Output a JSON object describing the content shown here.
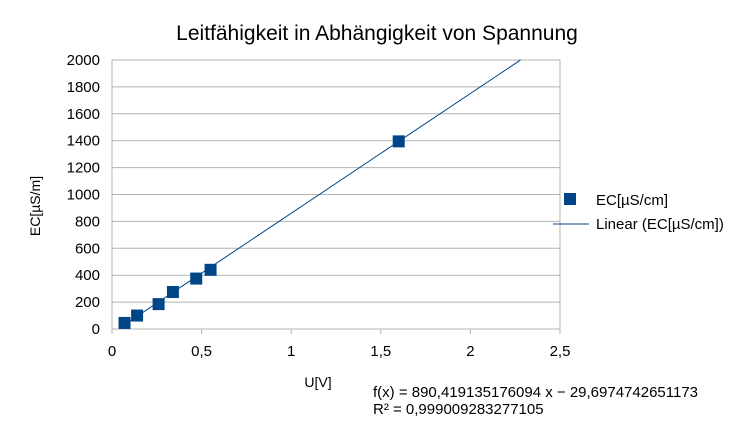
{
  "chart_data": {
    "type": "scatter",
    "title": "Leitfähigkeit in Abhängigkeit von Spannung",
    "xlabel": "U[V]",
    "ylabel": "EC[µS/m]",
    "xlim": [
      0,
      2.5
    ],
    "ylim": [
      0,
      2000
    ],
    "x_ticks": [
      "0",
      "0,5",
      "1",
      "1,5",
      "2",
      "2,5"
    ],
    "y_ticks": [
      "0",
      "200",
      "400",
      "600",
      "800",
      "1000",
      "1200",
      "1400",
      "1600",
      "1800",
      "2000"
    ],
    "grid": "horizontal",
    "legend_position": "right",
    "series": [
      {
        "name": "EC[µS/cm]",
        "color": "#004586",
        "marker": "square",
        "points": [
          {
            "x": 0.07,
            "y": 45
          },
          {
            "x": 0.14,
            "y": 100
          },
          {
            "x": 0.26,
            "y": 185
          },
          {
            "x": 0.34,
            "y": 275
          },
          {
            "x": 0.47,
            "y": 375
          },
          {
            "x": 0.55,
            "y": 440
          },
          {
            "x": 1.6,
            "y": 1395
          }
        ]
      }
    ],
    "trendline": {
      "name": "Linear (EC[µS/cm])",
      "color": "#004586",
      "slope": 890.419135176094,
      "intercept": -29.6974742651173,
      "x_range": [
        0.07,
        2.28
      ],
      "equation": "f(x) = 890,419135176094 x − 29,6974742651173",
      "r_squared": "R² = 0,999009283277105"
    }
  }
}
